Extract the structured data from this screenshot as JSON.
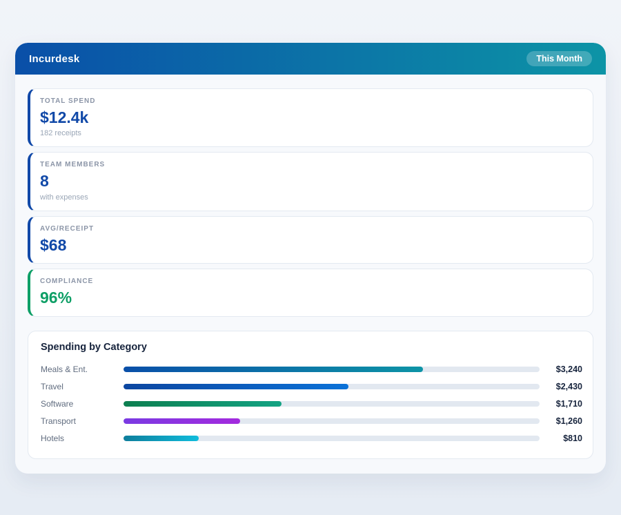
{
  "header": {
    "title": "Incurdesk",
    "badge": "This Month",
    "gradient_from": "#0a4fa8",
    "gradient_to": "#0d94a6"
  },
  "stats": [
    {
      "label": "TOTAL SPEND",
      "value": "$12.4k",
      "sub": "182 receipts",
      "accent": "#1149a8"
    },
    {
      "label": "TEAM MEMBERS",
      "value": "8",
      "sub": "with expenses",
      "accent": "#1149a8"
    },
    {
      "label": "AVG/RECEIPT",
      "value": "$68",
      "sub": "",
      "accent": "#1149a8"
    },
    {
      "label": "COMPLIANCE",
      "value": "96%",
      "sub": "",
      "accent": "#0e9f66"
    }
  ],
  "chart_data": {
    "type": "bar",
    "orientation": "horizontal",
    "title": "Spending by Category",
    "categories": [
      "Meals & Ent.",
      "Travel",
      "Software",
      "Transport",
      "Hotels"
    ],
    "values": [
      3240,
      2430,
      1710,
      1260,
      810
    ],
    "value_labels": [
      "$3,240",
      "$2,430",
      "$1,710",
      "$1,260",
      "$810"
    ],
    "scale_max": 4500,
    "track_color": "#e2e8f0",
    "bar_gradients": [
      {
        "from": "#0a4fa8",
        "to": "#0d94a6"
      },
      {
        "from": "#0c46a0",
        "to": "#0b72d8"
      },
      {
        "from": "#0d7f50",
        "to": "#14a383"
      },
      {
        "from": "#7a3ae2",
        "to": "#a32ade"
      },
      {
        "from": "#0e7e9c",
        "to": "#10bcdc"
      }
    ]
  }
}
